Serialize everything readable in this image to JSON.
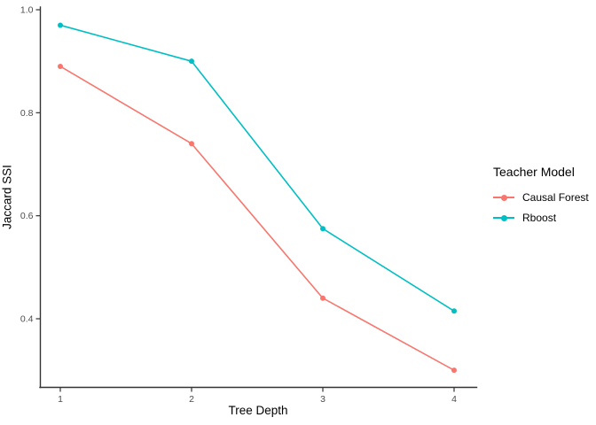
{
  "chart_data": {
    "type": "line",
    "title": "",
    "xlabel": "Tree Depth",
    "ylabel": "Jaccard SSI",
    "categories": [
      1,
      2,
      3,
      4
    ],
    "x_tick_labels": [
      "1",
      "2",
      "3",
      "4"
    ],
    "y_tick_values": [
      0.4,
      0.6,
      0.8,
      1.0
    ],
    "y_tick_labels": [
      "0.4",
      "0.6",
      "0.8",
      "1.0"
    ],
    "xlim": [
      1,
      4
    ],
    "ylim": [
      0.27,
      1.0
    ],
    "grid": false,
    "legend_position": "right",
    "legend_title": "Teacher Model",
    "series": [
      {
        "name": "Causal Forest",
        "color": "#F8766D",
        "values": [
          0.89,
          0.74,
          0.44,
          0.3
        ]
      },
      {
        "name": "Rboost",
        "color": "#00BFC4",
        "values": [
          0.97,
          0.9,
          0.575,
          0.415
        ]
      }
    ]
  }
}
